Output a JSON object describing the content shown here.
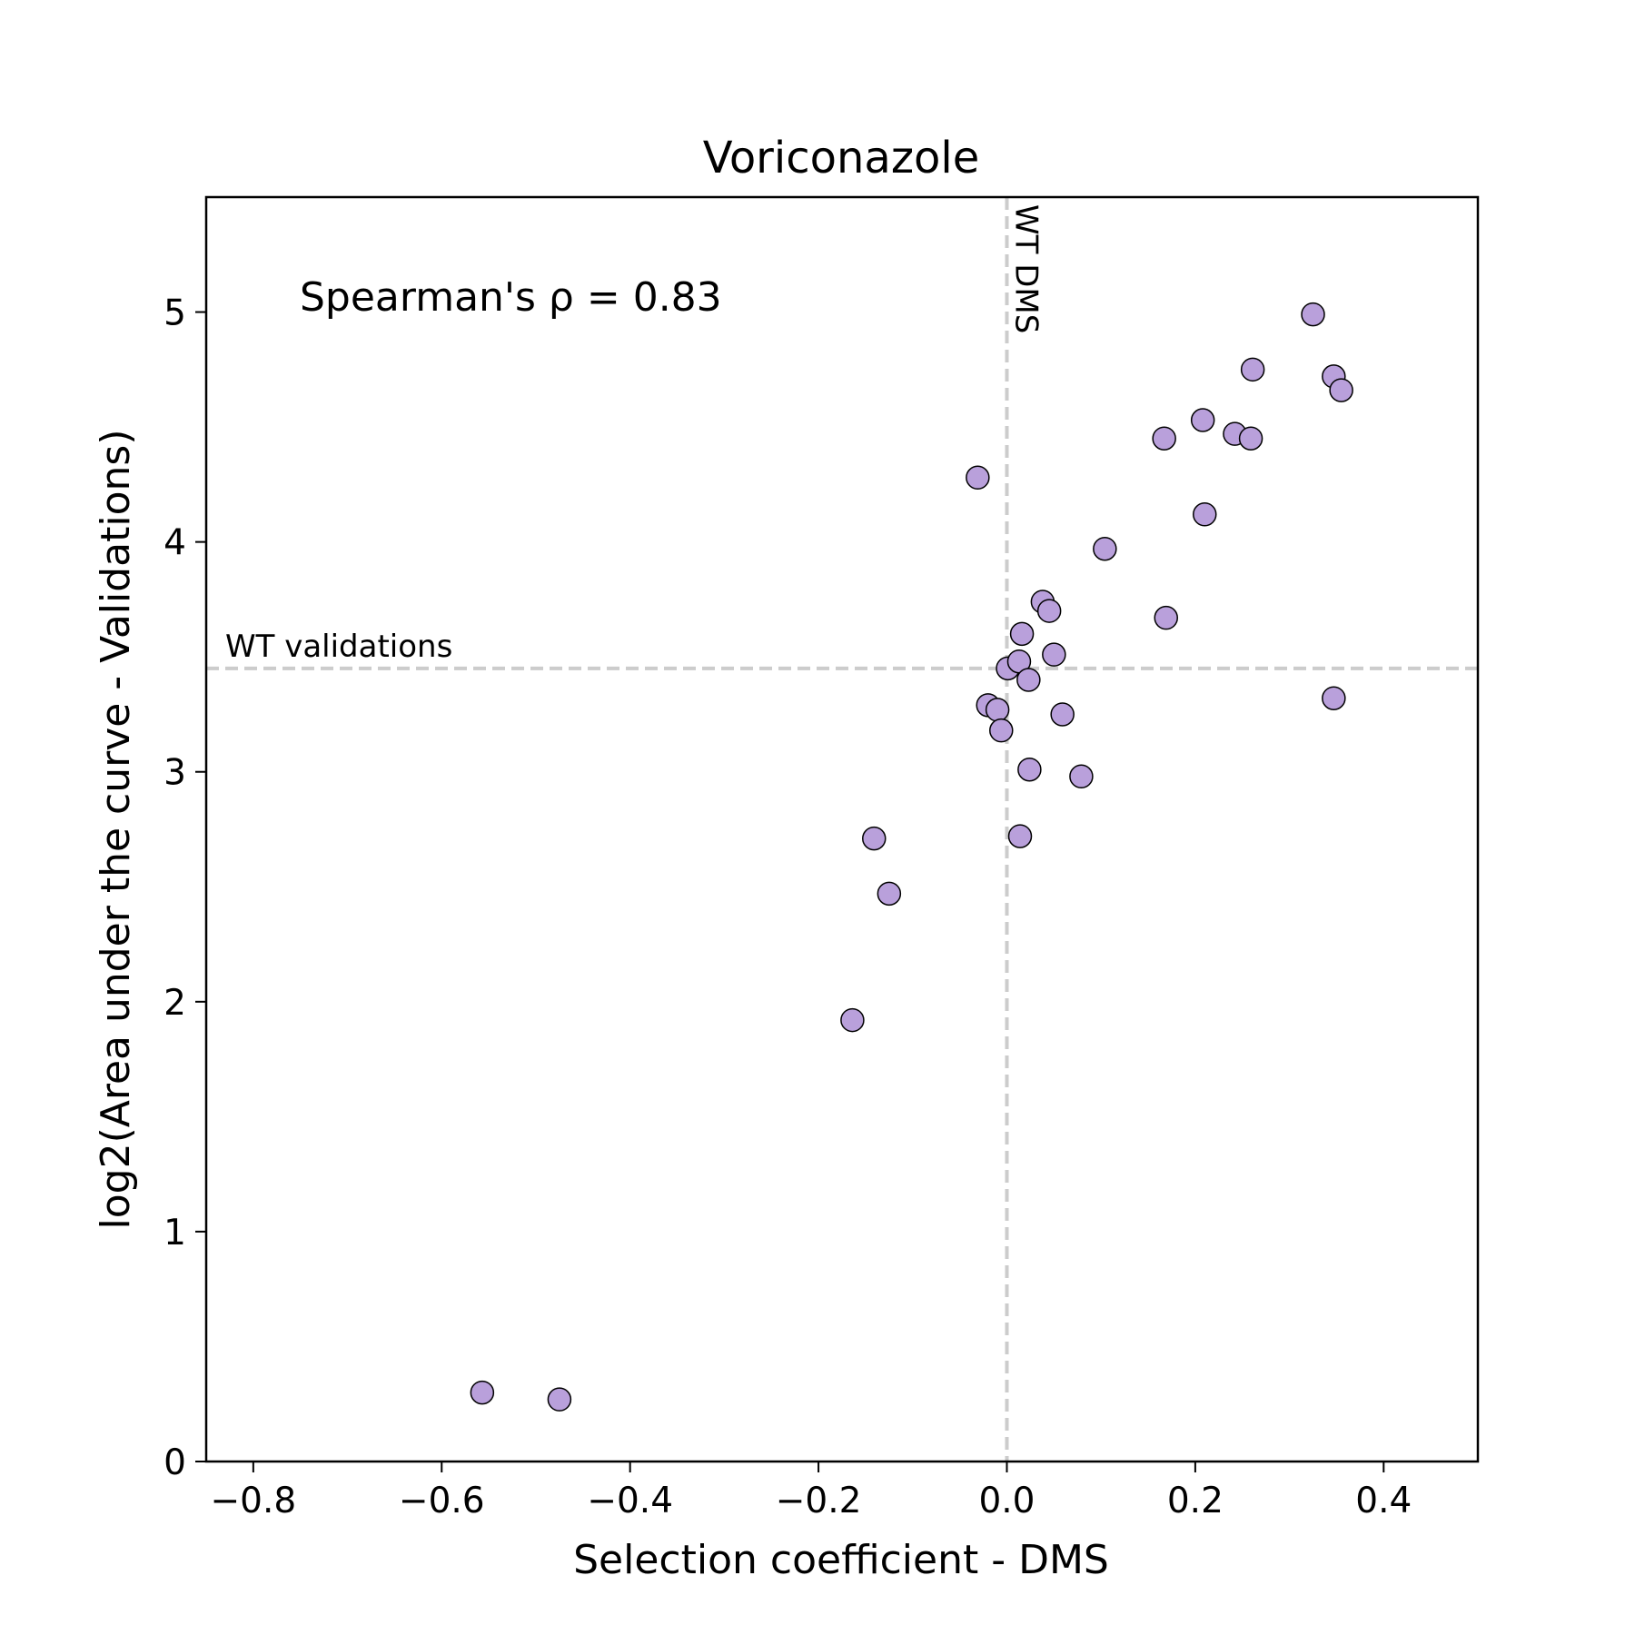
{
  "chart_data": {
    "type": "scatter",
    "title": "Voriconazole",
    "xlabel": "Selection coefficient - DMS",
    "ylabel": "log2(Area under the curve - Validations)",
    "xlim": [
      -0.85,
      0.5
    ],
    "ylim": [
      0,
      5.5
    ],
    "x_ticks": [
      -0.8,
      -0.6,
      -0.4,
      -0.2,
      0.0,
      0.2,
      0.4
    ],
    "x_tick_labels": [
      "−0.8",
      "−0.6",
      "−0.4",
      "−0.2",
      "0.0",
      "0.2",
      "0.4"
    ],
    "y_ticks": [
      0,
      1,
      2,
      3,
      4,
      5
    ],
    "y_tick_labels": [
      "0",
      "1",
      "2",
      "3",
      "4",
      "5"
    ],
    "grid": false,
    "annotation": "Spearman's ρ = 0.83",
    "reference_lines": {
      "vertical": {
        "x": 0.0,
        "label": "WT DMS"
      },
      "horizontal": {
        "y": 3.45,
        "label": "WT validations"
      }
    },
    "colors": {
      "point_fill": "#b9a0db",
      "point_edge": "#000000",
      "ref_line": "#cccccc"
    },
    "points": [
      {
        "x": -0.557,
        "y": 0.3
      },
      {
        "x": -0.475,
        "y": 0.27
      },
      {
        "x": -0.164,
        "y": 1.92
      },
      {
        "x": -0.141,
        "y": 2.71
      },
      {
        "x": -0.125,
        "y": 2.47
      },
      {
        "x": -0.031,
        "y": 4.28
      },
      {
        "x": -0.02,
        "y": 3.29
      },
      {
        "x": -0.01,
        "y": 3.27
      },
      {
        "x": -0.006,
        "y": 3.18
      },
      {
        "x": 0.001,
        "y": 3.45
      },
      {
        "x": 0.013,
        "y": 3.48
      },
      {
        "x": 0.016,
        "y": 3.6
      },
      {
        "x": 0.014,
        "y": 2.72
      },
      {
        "x": 0.023,
        "y": 3.4
      },
      {
        "x": 0.024,
        "y": 3.01
      },
      {
        "x": 0.038,
        "y": 3.74
      },
      {
        "x": 0.045,
        "y": 3.7
      },
      {
        "x": 0.05,
        "y": 3.51
      },
      {
        "x": 0.059,
        "y": 3.25
      },
      {
        "x": 0.079,
        "y": 2.98
      },
      {
        "x": 0.104,
        "y": 3.97
      },
      {
        "x": 0.167,
        "y": 4.45
      },
      {
        "x": 0.169,
        "y": 3.67
      },
      {
        "x": 0.208,
        "y": 4.53
      },
      {
        "x": 0.21,
        "y": 4.12
      },
      {
        "x": 0.242,
        "y": 4.47
      },
      {
        "x": 0.259,
        "y": 4.45
      },
      {
        "x": 0.261,
        "y": 4.75
      },
      {
        "x": 0.325,
        "y": 4.99
      },
      {
        "x": 0.347,
        "y": 4.72
      },
      {
        "x": 0.355,
        "y": 4.66
      },
      {
        "x": 0.347,
        "y": 3.32
      }
    ]
  }
}
